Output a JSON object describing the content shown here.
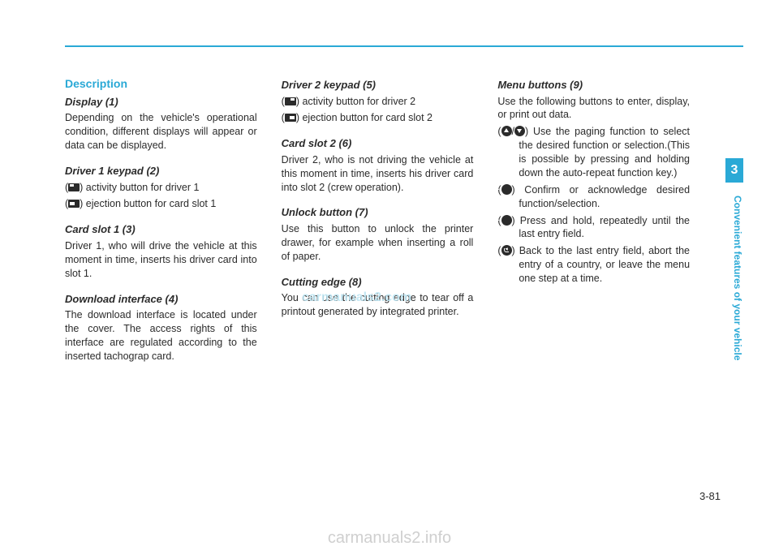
{
  "colors": {
    "accent": "#2aa9d6",
    "text": "#2b2b2b",
    "watermark": "#bfe6f3",
    "footer": "#cfcfcf",
    "background": "#ffffff"
  },
  "sideTab": {
    "number": "3",
    "label": "Convenient features of your vehicle"
  },
  "pageNumber": "3-81",
  "watermark": "carmanuals2.com",
  "footer": "carmanuals2.info",
  "col1": {
    "description_heading": "Description",
    "display_heading": "Display (1)",
    "display_body": "Depending on the vehicle's operational condition, different displays will appear or data can be displayed.",
    "driver1_heading": "Driver 1 keypad (2)",
    "driver1_line1_post": ") activity button for driver 1",
    "driver1_line2_post": ") ejection button for card slot 1",
    "cardslot1_heading": "Card slot 1 (3)",
    "cardslot1_body": "Driver 1, who will drive the vehicle at this moment in time, inserts his driver card into slot 1.",
    "download_heading": "Download interface (4)",
    "download_body": "The download interface is located under the cover. The access rights of this interface are regulated according to the inserted tachograp card."
  },
  "col2": {
    "driver2_heading": "Driver 2 keypad (5)",
    "driver2_line1_post": ") activity button for driver 2",
    "driver2_line2_post": ") ejection button for card slot 2",
    "cardslot2_heading": "Card slot 2 (6)",
    "cardslot2_body": "Driver 2, who is not driving the vehicle at this moment in time, inserts his driver card into slot 2 (crew operation).",
    "unlock_heading": "Unlock button (7)",
    "unlock_body": "Use this button to unlock the printer drawer, for example when inserting a roll of paper.",
    "cutting_heading": "Cutting edge (8)",
    "cutting_body": "You can use the cutting edge to tear off a printout generated by integrated printer."
  },
  "col3": {
    "menu_heading": "Menu buttons (9)",
    "menu_intro": "Use the following buttons to enter, display, or print out data.",
    "item1_post": ") Use the paging function to select the desired function or selection.(This is possible by pressing and holding down the auto-repeat function key.)",
    "item2_post": ") Confirm or acknowledge desired function/selection.",
    "item3_post": ") Press and hold, repeatedly until the last entry field.",
    "item4_post": ") Back to the last entry field, abort the entry of a country, or leave the menu one step at a time."
  }
}
